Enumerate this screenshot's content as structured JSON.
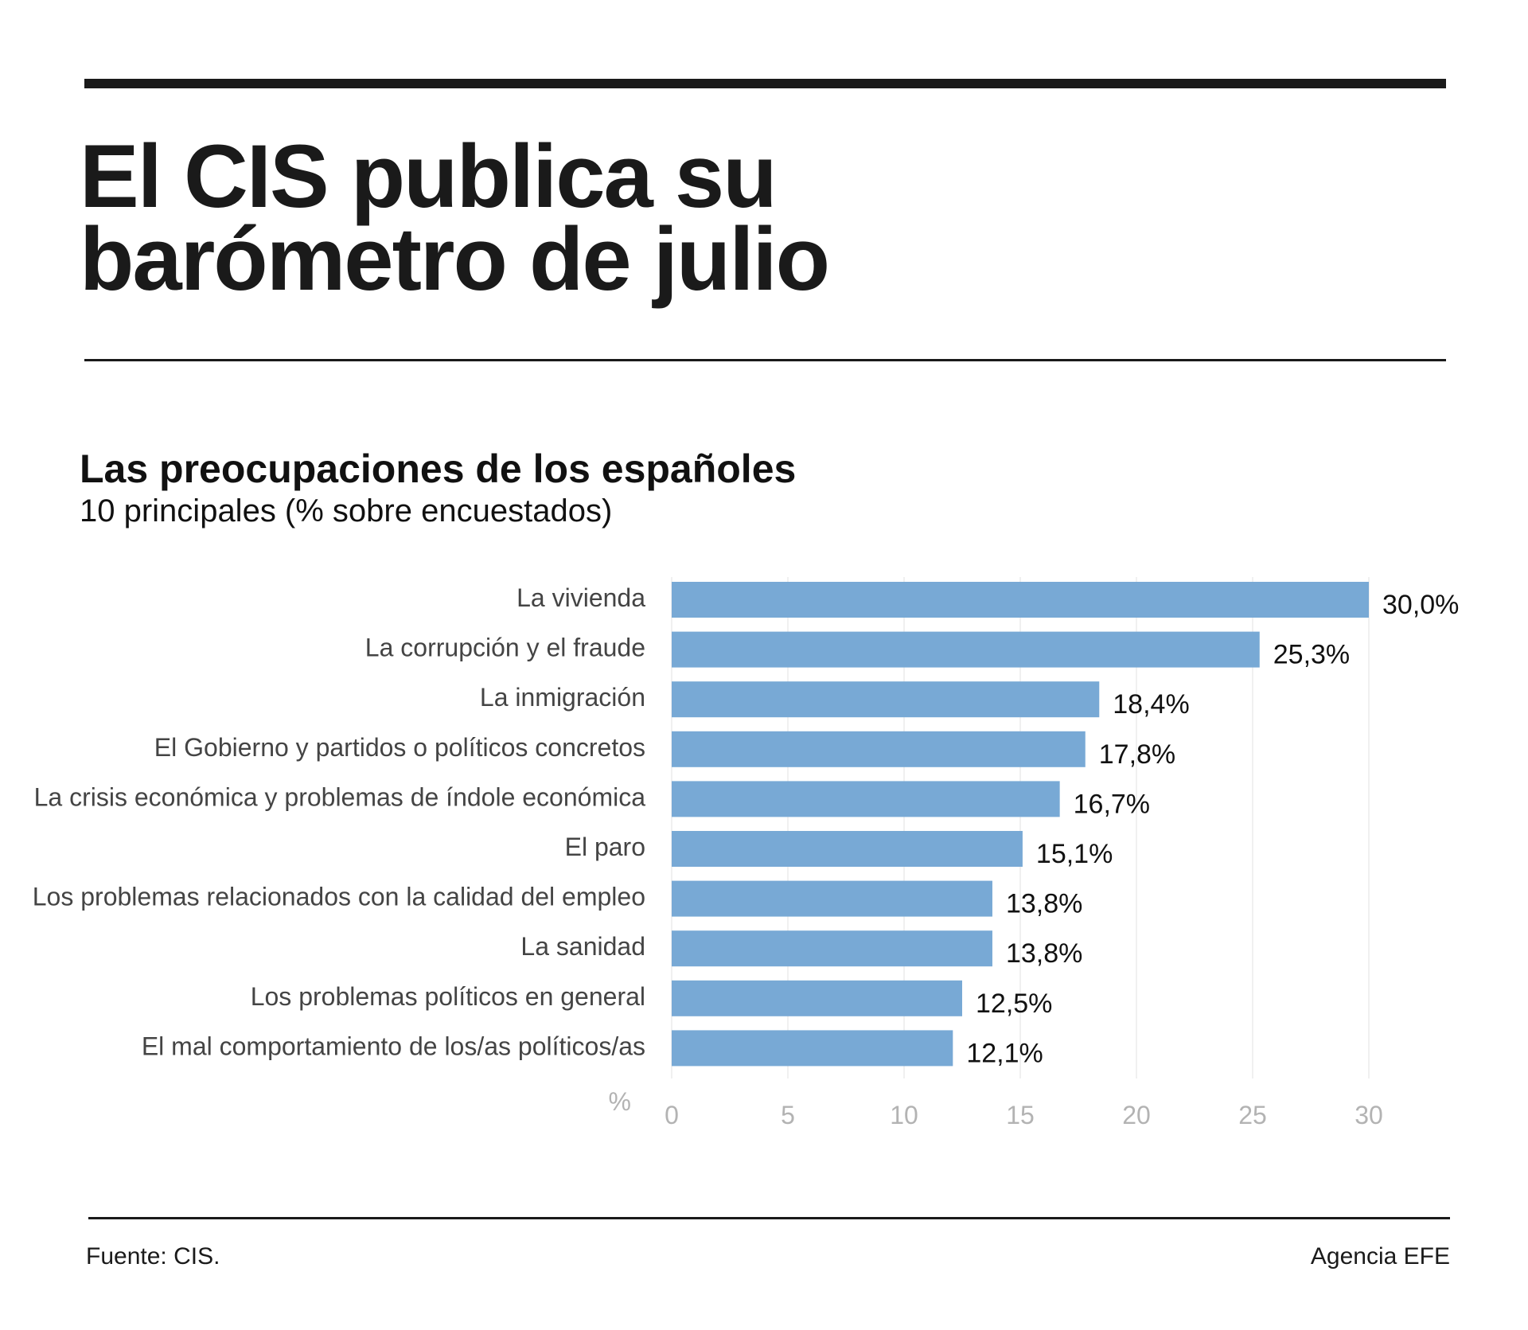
{
  "header": {
    "title_line1": "El CIS publica su",
    "title_line2": "barómetro de julio"
  },
  "chart_data": {
    "type": "bar",
    "orientation": "horizontal",
    "title": "Las preocupaciones de los españoles",
    "subtitle": "10 principales (% sobre encuestados)",
    "categories": [
      "La vivienda",
      "La corrupción y el fraude",
      "La inmigración",
      "El Gobierno y partidos o políticos concretos",
      "La crisis económica y problemas de índole económica",
      "El paro",
      "Los problemas relacionados con la calidad del empleo",
      "La sanidad",
      "Los problemas políticos en general",
      "El mal comportamiento de los/as políticos/as"
    ],
    "values": [
      30.0,
      25.3,
      18.4,
      17.8,
      16.7,
      15.1,
      13.8,
      13.8,
      12.5,
      12.1
    ],
    "value_labels": [
      "30,0%",
      "25,3%",
      "18,4%",
      "17,8%",
      "16,7%",
      "15,1%",
      "13,8%",
      "13,8%",
      "12,5%",
      "12,1%"
    ],
    "xlabel": "%",
    "xlim": [
      0,
      30
    ],
    "xticks": [
      0,
      5,
      10,
      15,
      20,
      25,
      30
    ],
    "grid": true,
    "bar_color": "#78a9d5"
  },
  "footer": {
    "source": "Fuente: CIS.",
    "credit": "Agencia EFE"
  }
}
